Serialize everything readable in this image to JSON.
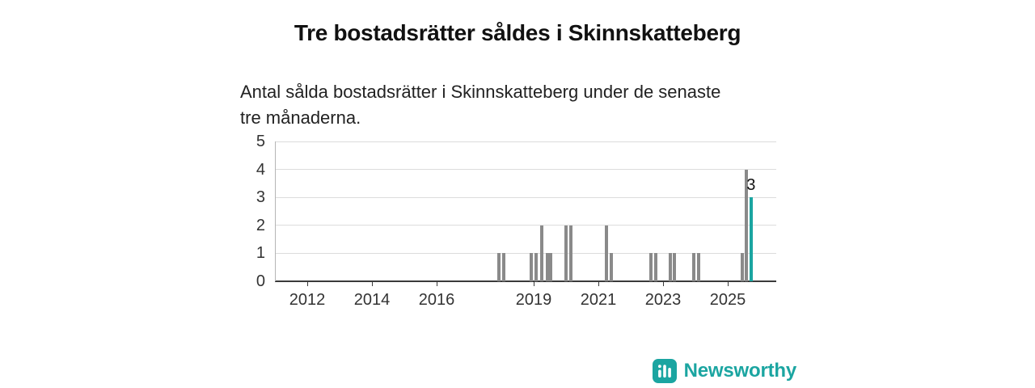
{
  "title": "Tre bostadsrätter såldes i Skinnskatteberg",
  "subtitle": "Antal sålda bostadsrätter i Skinnskatteberg under de senaste tre månaderna.",
  "brand": {
    "name": "Newsworthy",
    "color": "#1ba5a1"
  },
  "colors": {
    "bar": "#8a8a8a",
    "highlight": "#1ba5a1",
    "grid": "#dcdcdc",
    "axis": "#3a3a3a"
  },
  "chart_data": {
    "type": "bar",
    "title": "Tre bostadsrätter såldes i Skinnskatteberg",
    "subtitle": "Antal sålda bostadsrätter i Skinnskatteberg under de senaste tre månaderna.",
    "xlabel": "",
    "ylabel": "",
    "ylim": [
      0,
      5
    ],
    "xlim": [
      2011,
      2026.5
    ],
    "yticks": [
      0,
      1,
      2,
      3,
      4,
      5
    ],
    "xticks": [
      {
        "x": 2012,
        "label": "2012"
      },
      {
        "x": 2014,
        "label": "2014"
      },
      {
        "x": 2016,
        "label": "2016"
      },
      {
        "x": 2019,
        "label": "2019"
      },
      {
        "x": 2021,
        "label": "2021"
      },
      {
        "x": 2023,
        "label": "2023"
      },
      {
        "x": 2025,
        "label": "2025"
      }
    ],
    "points": [
      {
        "x": 2017.92,
        "y": 1
      },
      {
        "x": 2018.08,
        "y": 1
      },
      {
        "x": 2018.92,
        "y": 1
      },
      {
        "x": 2019.08,
        "y": 1
      },
      {
        "x": 2019.25,
        "y": 2
      },
      {
        "x": 2019.42,
        "y": 1
      },
      {
        "x": 2019.52,
        "y": 1
      },
      {
        "x": 2020.0,
        "y": 2
      },
      {
        "x": 2020.15,
        "y": 2
      },
      {
        "x": 2021.25,
        "y": 2
      },
      {
        "x": 2021.4,
        "y": 1
      },
      {
        "x": 2022.63,
        "y": 1
      },
      {
        "x": 2022.77,
        "y": 1
      },
      {
        "x": 2023.22,
        "y": 1
      },
      {
        "x": 2023.36,
        "y": 1
      },
      {
        "x": 2023.96,
        "y": 1
      },
      {
        "x": 2024.1,
        "y": 1
      },
      {
        "x": 2025.45,
        "y": 1
      },
      {
        "x": 2025.58,
        "y": 4
      },
      {
        "x": 2025.72,
        "y": 3,
        "highlight": true,
        "label": "3"
      }
    ],
    "legend": false,
    "grid": true
  }
}
